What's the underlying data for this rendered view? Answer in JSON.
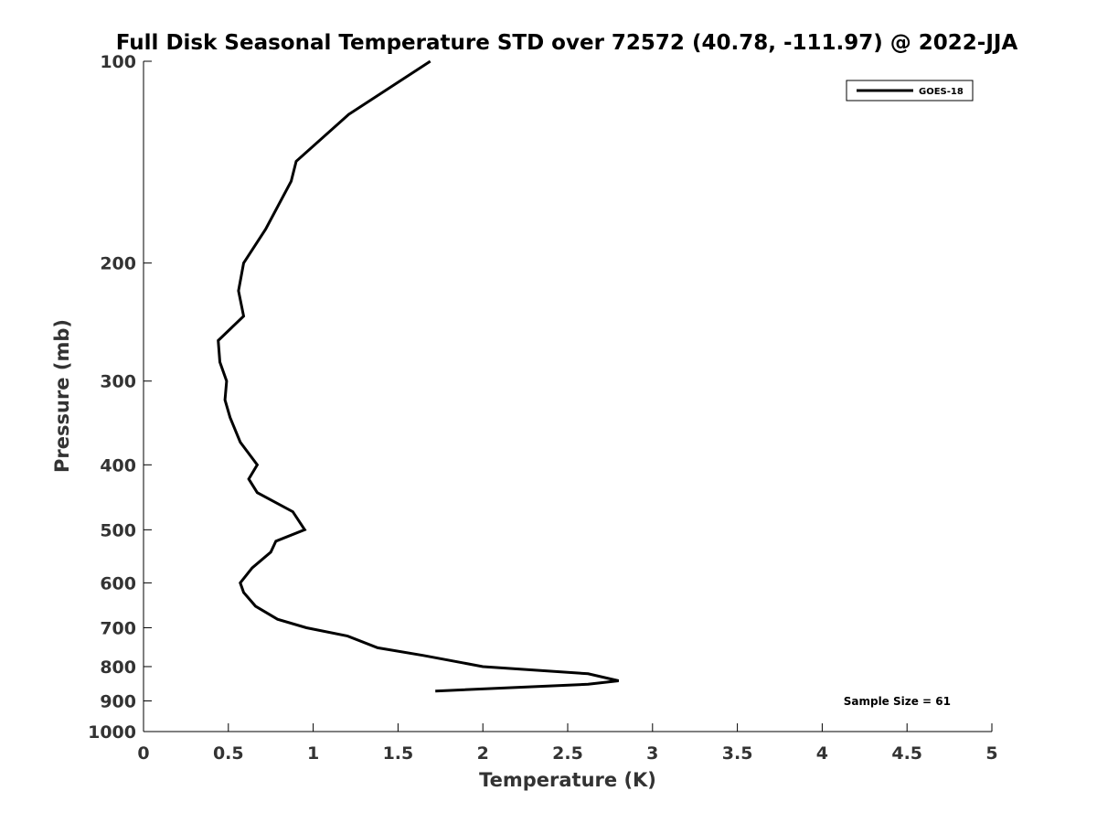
{
  "chart_data": {
    "type": "line",
    "title": "Full Disk Seasonal Temperature STD over 72572 (40.78, -111.97) @ 2022-JJA",
    "xlabel": "Temperature (K)",
    "ylabel": "Pressure (mb)",
    "xlim": [
      0,
      5
    ],
    "ylim": [
      100,
      1000
    ],
    "y_scale": "log",
    "y_reversed": true,
    "grid": false,
    "legend_position": "top-right",
    "x_ticks": [
      "0",
      "0.5",
      "1",
      "1.5",
      "2",
      "2.5",
      "3",
      "3.5",
      "4",
      "4.5",
      "5"
    ],
    "y_ticks": [
      "100",
      "200",
      "300",
      "400",
      "500",
      "600",
      "700",
      "800",
      "900",
      "1000"
    ],
    "annotation": "Sample Size = 61",
    "series": [
      {
        "name": "GOES-18",
        "color": "#000000",
        "x": [
          1.69,
          1.21,
          0.9,
          0.87,
          0.72,
          0.59,
          0.56,
          0.59,
          0.44,
          0.45,
          0.49,
          0.48,
          0.51,
          0.57,
          0.67,
          0.62,
          0.67,
          0.88,
          0.95,
          0.78,
          0.75,
          0.64,
          0.57,
          0.59,
          0.66,
          0.79,
          0.96,
          1.2,
          1.38,
          1.65,
          2.0,
          2.62,
          2.8,
          2.62,
          1.72
        ],
        "y": [
          100,
          120,
          141,
          151,
          178,
          200,
          220,
          240,
          261,
          281,
          300,
          320,
          340,
          370,
          400,
          420,
          440,
          470,
          500,
          520,
          540,
          570,
          600,
          620,
          650,
          680,
          700,
          720,
          750,
          770,
          800,
          820,
          840,
          850,
          870
        ]
      }
    ]
  }
}
